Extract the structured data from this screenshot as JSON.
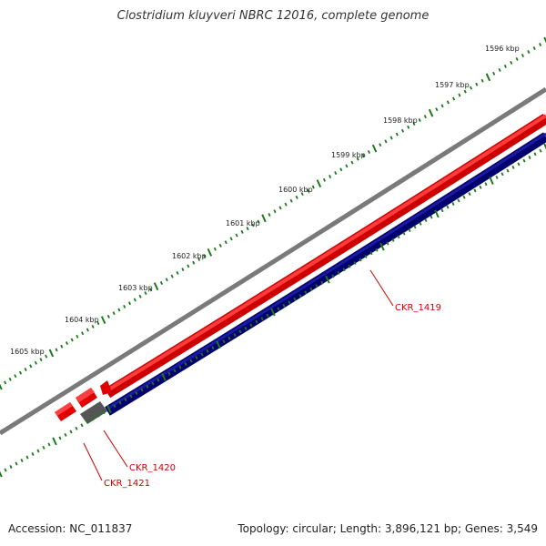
{
  "title": "Clostridium kluyveri NBRC 12016, complete genome",
  "footer": {
    "accession": "Accession: NC_011837",
    "summary": "Topology: circular; Length: 3,896,121 bp; Genes: 3,549"
  },
  "ruler": {
    "labels": [
      "1596 kbp",
      "1597 kbp",
      "1598 kbp",
      "1599 kbp",
      "1600 kbp",
      "1601 kbp",
      "1602 kbp",
      "1603 kbp",
      "1604 kbp",
      "1605 kbp"
    ]
  },
  "genes": [
    {
      "name": "CKR_1419"
    },
    {
      "name": "CKR_1420"
    },
    {
      "name": "CKR_1421"
    }
  ],
  "colors": {
    "tick": "#1a7a1a",
    "forward": "#ee0000",
    "reverse": "#000080",
    "backbone": "#808080",
    "other": "#606060",
    "label": "#cc0000"
  }
}
